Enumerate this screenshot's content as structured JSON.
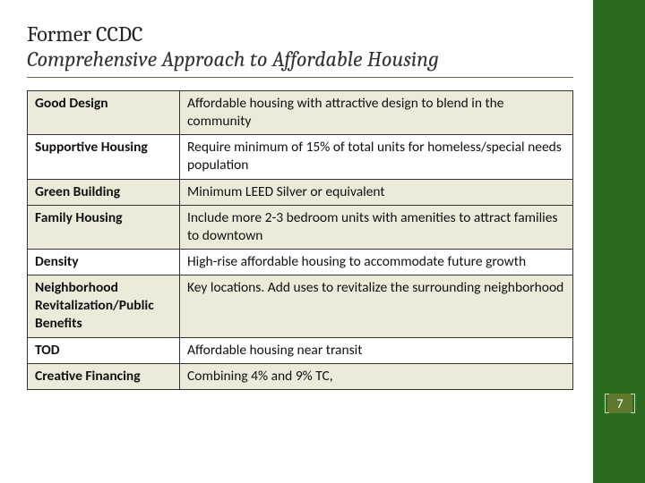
{
  "title": {
    "line1": "Former CCDC",
    "line2": "Comprehensive Approach to Affordable Housing"
  },
  "table": {
    "rows": [
      {
        "label": "Good Design",
        "desc": "Affordable housing with attractive design to blend in the community",
        "band": "tint"
      },
      {
        "label": "Supportive Housing",
        "desc": "Require minimum of 15% of total units for homeless/special needs population",
        "band": "white"
      },
      {
        "label": "Green Building",
        "desc": "Minimum LEED Silver or equivalent",
        "band": "tint"
      },
      {
        "label": "Family Housing",
        "desc": "Include more 2-3 bedroom units with amenities to attract families to downtown",
        "band": "tint"
      },
      {
        "label": "Density",
        "desc": "High-rise affordable housing to accommodate future growth",
        "band": "white"
      },
      {
        "label": "Neighborhood Revitalization/Public Benefits",
        "desc": "Key locations.  Add uses to revitalize the surrounding neighborhood",
        "band": "tint"
      },
      {
        "label": "TOD",
        "desc": "Affordable housing near transit",
        "band": "white"
      },
      {
        "label": "Creative Financing",
        "desc": "Combining 4% and 9% TC,",
        "band": "tint"
      }
    ]
  },
  "colors": {
    "sidebar": "#2b6b1f",
    "row_tint": "#ecead8",
    "row_white": "#ffffff",
    "underline": "#607040",
    "page_badge": "#5f7a2f"
  },
  "page_number": "7"
}
